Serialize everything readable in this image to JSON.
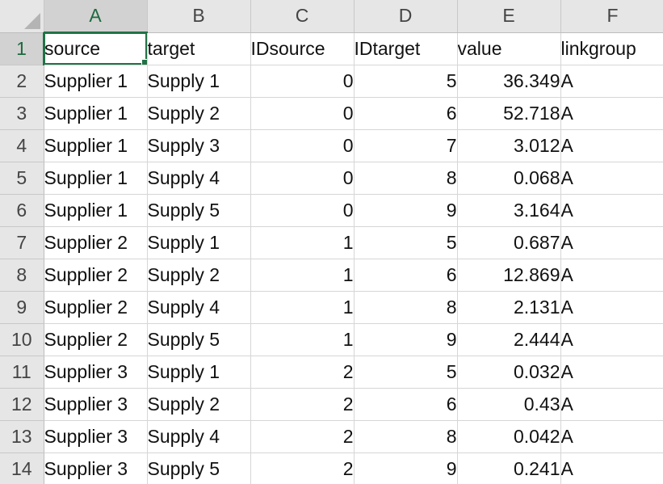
{
  "columns": [
    "A",
    "B",
    "C",
    "D",
    "E",
    "F"
  ],
  "rows": [
    {
      "num": "1",
      "cells": [
        "source",
        "target",
        "IDsource",
        "IDtarget",
        "value",
        "linkgroup"
      ]
    },
    {
      "num": "2",
      "cells": [
        "Supplier 1",
        "Supply 1",
        "0",
        "5",
        "36.349",
        "A"
      ]
    },
    {
      "num": "3",
      "cells": [
        "Supplier 1",
        "Supply 2",
        "0",
        "6",
        "52.718",
        "A"
      ]
    },
    {
      "num": "4",
      "cells": [
        "Supplier 1",
        "Supply 3",
        "0",
        "7",
        "3.012",
        "A"
      ]
    },
    {
      "num": "5",
      "cells": [
        "Supplier 1",
        "Supply 4",
        "0",
        "8",
        "0.068",
        "A"
      ]
    },
    {
      "num": "6",
      "cells": [
        "Supplier 1",
        "Supply 5",
        "0",
        "9",
        "3.164",
        "A"
      ]
    },
    {
      "num": "7",
      "cells": [
        "Supplier 2",
        "Supply 1",
        "1",
        "5",
        "0.687",
        "A"
      ]
    },
    {
      "num": "8",
      "cells": [
        "Supplier 2",
        "Supply 2",
        "1",
        "6",
        "12.869",
        "A"
      ]
    },
    {
      "num": "9",
      "cells": [
        "Supplier 2",
        "Supply 4",
        "1",
        "8",
        "2.131",
        "A"
      ]
    },
    {
      "num": "10",
      "cells": [
        "Supplier 2",
        "Supply 5",
        "1",
        "9",
        "2.444",
        "A"
      ]
    },
    {
      "num": "11",
      "cells": [
        "Supplier 3",
        "Supply 1",
        "2",
        "5",
        "0.032",
        "A"
      ]
    },
    {
      "num": "12",
      "cells": [
        "Supplier 3",
        "Supply 2",
        "2",
        "6",
        "0.43",
        "A"
      ]
    },
    {
      "num": "13",
      "cells": [
        "Supplier 3",
        "Supply 4",
        "2",
        "8",
        "0.042",
        "A"
      ]
    },
    {
      "num": "14",
      "cells": [
        "Supplier 3",
        "Supply 5",
        "2",
        "9",
        "0.241",
        "A"
      ]
    }
  ],
  "selected_cell": "A1",
  "colors": {
    "accent": "#217346",
    "header_bg": "#e6e6e6",
    "active_header_bg": "#d2d2d2",
    "gridline": "#d6d6d6"
  }
}
